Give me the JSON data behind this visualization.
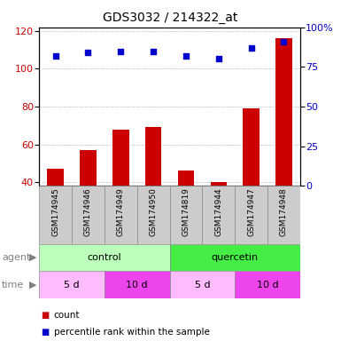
{
  "title": "GDS3032 / 214322_at",
  "samples": [
    "GSM174945",
    "GSM174946",
    "GSM174949",
    "GSM174950",
    "GSM174819",
    "GSM174944",
    "GSM174947",
    "GSM174948"
  ],
  "counts": [
    47,
    57,
    68,
    69,
    46,
    40,
    79,
    116
  ],
  "percentiles": [
    82,
    84,
    85,
    85,
    82,
    80,
    87,
    91
  ],
  "ylim_left": [
    38,
    122
  ],
  "ylim_right": [
    0,
    100
  ],
  "yticks_left": [
    40,
    60,
    80,
    100,
    120
  ],
  "yticks_right": [
    0,
    25,
    50,
    75,
    100
  ],
  "ytick_labels_right": [
    "0",
    "25",
    "50",
    "75",
    "100%"
  ],
  "bar_color": "#cc0000",
  "dot_color": "#0000cc",
  "agent_groups": [
    {
      "label": "control",
      "start": 0,
      "end": 4,
      "color": "#bbffbb"
    },
    {
      "label": "quercetin",
      "start": 4,
      "end": 8,
      "color": "#44ee44"
    }
  ],
  "time_groups": [
    {
      "label": "5 d",
      "start": 0,
      "end": 2,
      "color": "#ffbbff"
    },
    {
      "label": "10 d",
      "start": 2,
      "end": 4,
      "color": "#ee44ee"
    },
    {
      "label": "5 d",
      "start": 4,
      "end": 6,
      "color": "#ffbbff"
    },
    {
      "label": "10 d",
      "start": 6,
      "end": 8,
      "color": "#ee44ee"
    }
  ],
  "grid_color": "#888888",
  "sample_bg_color": "#cccccc",
  "tick_label_color_left": "#cc0000",
  "tick_label_color_right": "#0000cc",
  "bar_width": 0.5
}
